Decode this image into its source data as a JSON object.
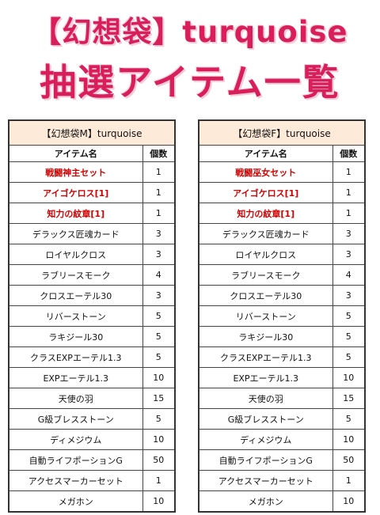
{
  "title_line1": "【幻想袋】turquoise",
  "title_line2": "抽選アイテム一覧",
  "colors": {
    "title": "#d81e5b",
    "rare_text": "#d00000",
    "caption_bg": "#fdead9"
  },
  "tables": [
    {
      "caption": "【幻想袋M】turquoise",
      "headers": {
        "name": "アイテム名",
        "qty": "個数"
      },
      "rows": [
        {
          "name": "戦闘神主セット",
          "qty": "1",
          "rare": true
        },
        {
          "name": "アイゴケロス[1]",
          "qty": "1",
          "rare": true
        },
        {
          "name": "知力の紋章[1]",
          "qty": "1",
          "rare": true
        },
        {
          "name": "デラックス匠魂カード",
          "qty": "3",
          "rare": false
        },
        {
          "name": "ロイヤルクロス",
          "qty": "3",
          "rare": false
        },
        {
          "name": "ラブリースモーク",
          "qty": "4",
          "rare": false
        },
        {
          "name": "クロスエーテル30",
          "qty": "3",
          "rare": false
        },
        {
          "name": "リバーストーン",
          "qty": "5",
          "rare": false
        },
        {
          "name": "ラキジール30",
          "qty": "5",
          "rare": false
        },
        {
          "name": "クラスEXPエーテル1.3",
          "qty": "5",
          "rare": false
        },
        {
          "name": "EXPエーテル1.3",
          "qty": "10",
          "rare": false
        },
        {
          "name": "天使の羽",
          "qty": "15",
          "rare": false
        },
        {
          "name": "G級ブレスストーン",
          "qty": "5",
          "rare": false
        },
        {
          "name": "ディメジウム",
          "qty": "10",
          "rare": false
        },
        {
          "name": "自動ライフポーションG",
          "qty": "50",
          "rare": false
        },
        {
          "name": "アクセスマーカーセット",
          "qty": "1",
          "rare": false
        },
        {
          "name": "メガホン",
          "qty": "10",
          "rare": false
        }
      ]
    },
    {
      "caption": "【幻想袋F】turquoise",
      "headers": {
        "name": "アイテム名",
        "qty": "個数"
      },
      "rows": [
        {
          "name": "戦闘巫女セット",
          "qty": "1",
          "rare": true
        },
        {
          "name": "アイゴケロス[1]",
          "qty": "1",
          "rare": true
        },
        {
          "name": "知力の紋章[1]",
          "qty": "1",
          "rare": true
        },
        {
          "name": "デラックス匠魂カード",
          "qty": "3",
          "rare": false
        },
        {
          "name": "ロイヤルクロス",
          "qty": "3",
          "rare": false
        },
        {
          "name": "ラブリースモーク",
          "qty": "4",
          "rare": false
        },
        {
          "name": "クロスエーテル30",
          "qty": "3",
          "rare": false
        },
        {
          "name": "リバーストーン",
          "qty": "5",
          "rare": false
        },
        {
          "name": "ラキジール30",
          "qty": "5",
          "rare": false
        },
        {
          "name": "クラスEXPエーテル1.3",
          "qty": "5",
          "rare": false
        },
        {
          "name": "EXPエーテル1.3",
          "qty": "10",
          "rare": false
        },
        {
          "name": "天使の羽",
          "qty": "15",
          "rare": false
        },
        {
          "name": "G級ブレスストーン",
          "qty": "5",
          "rare": false
        },
        {
          "name": "ディメジウム",
          "qty": "10",
          "rare": false
        },
        {
          "name": "自動ライフポーションG",
          "qty": "50",
          "rare": false
        },
        {
          "name": "アクセスマーカーセット",
          "qty": "1",
          "rare": false
        },
        {
          "name": "メガホン",
          "qty": "10",
          "rare": false
        }
      ]
    }
  ]
}
